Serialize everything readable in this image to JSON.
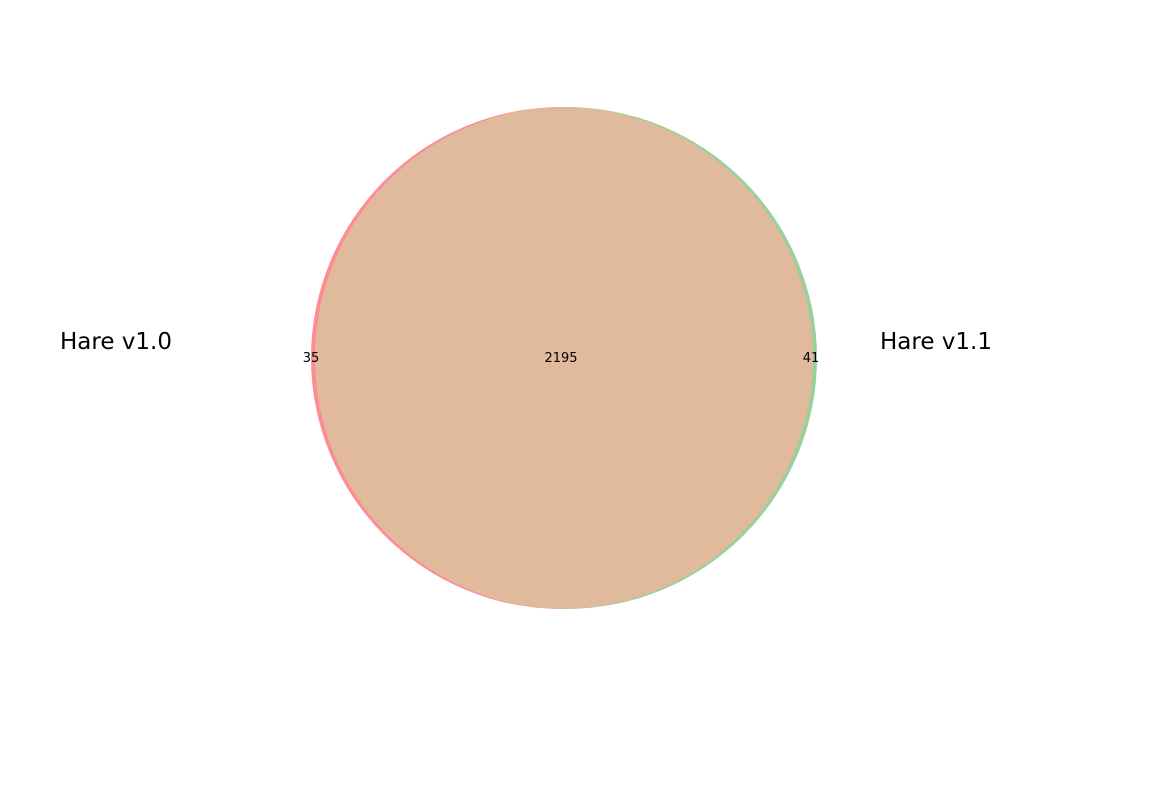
{
  "venn": {
    "sets": [
      {
        "name": "Hare v1.0",
        "color": "#ff8c94"
      },
      {
        "name": "Hare v1.1",
        "color": "#99d09b"
      }
    ],
    "overlap_color": "#e1b99c",
    "regions": {
      "only_left": "35",
      "both": "2195",
      "only_right": "41"
    }
  }
}
